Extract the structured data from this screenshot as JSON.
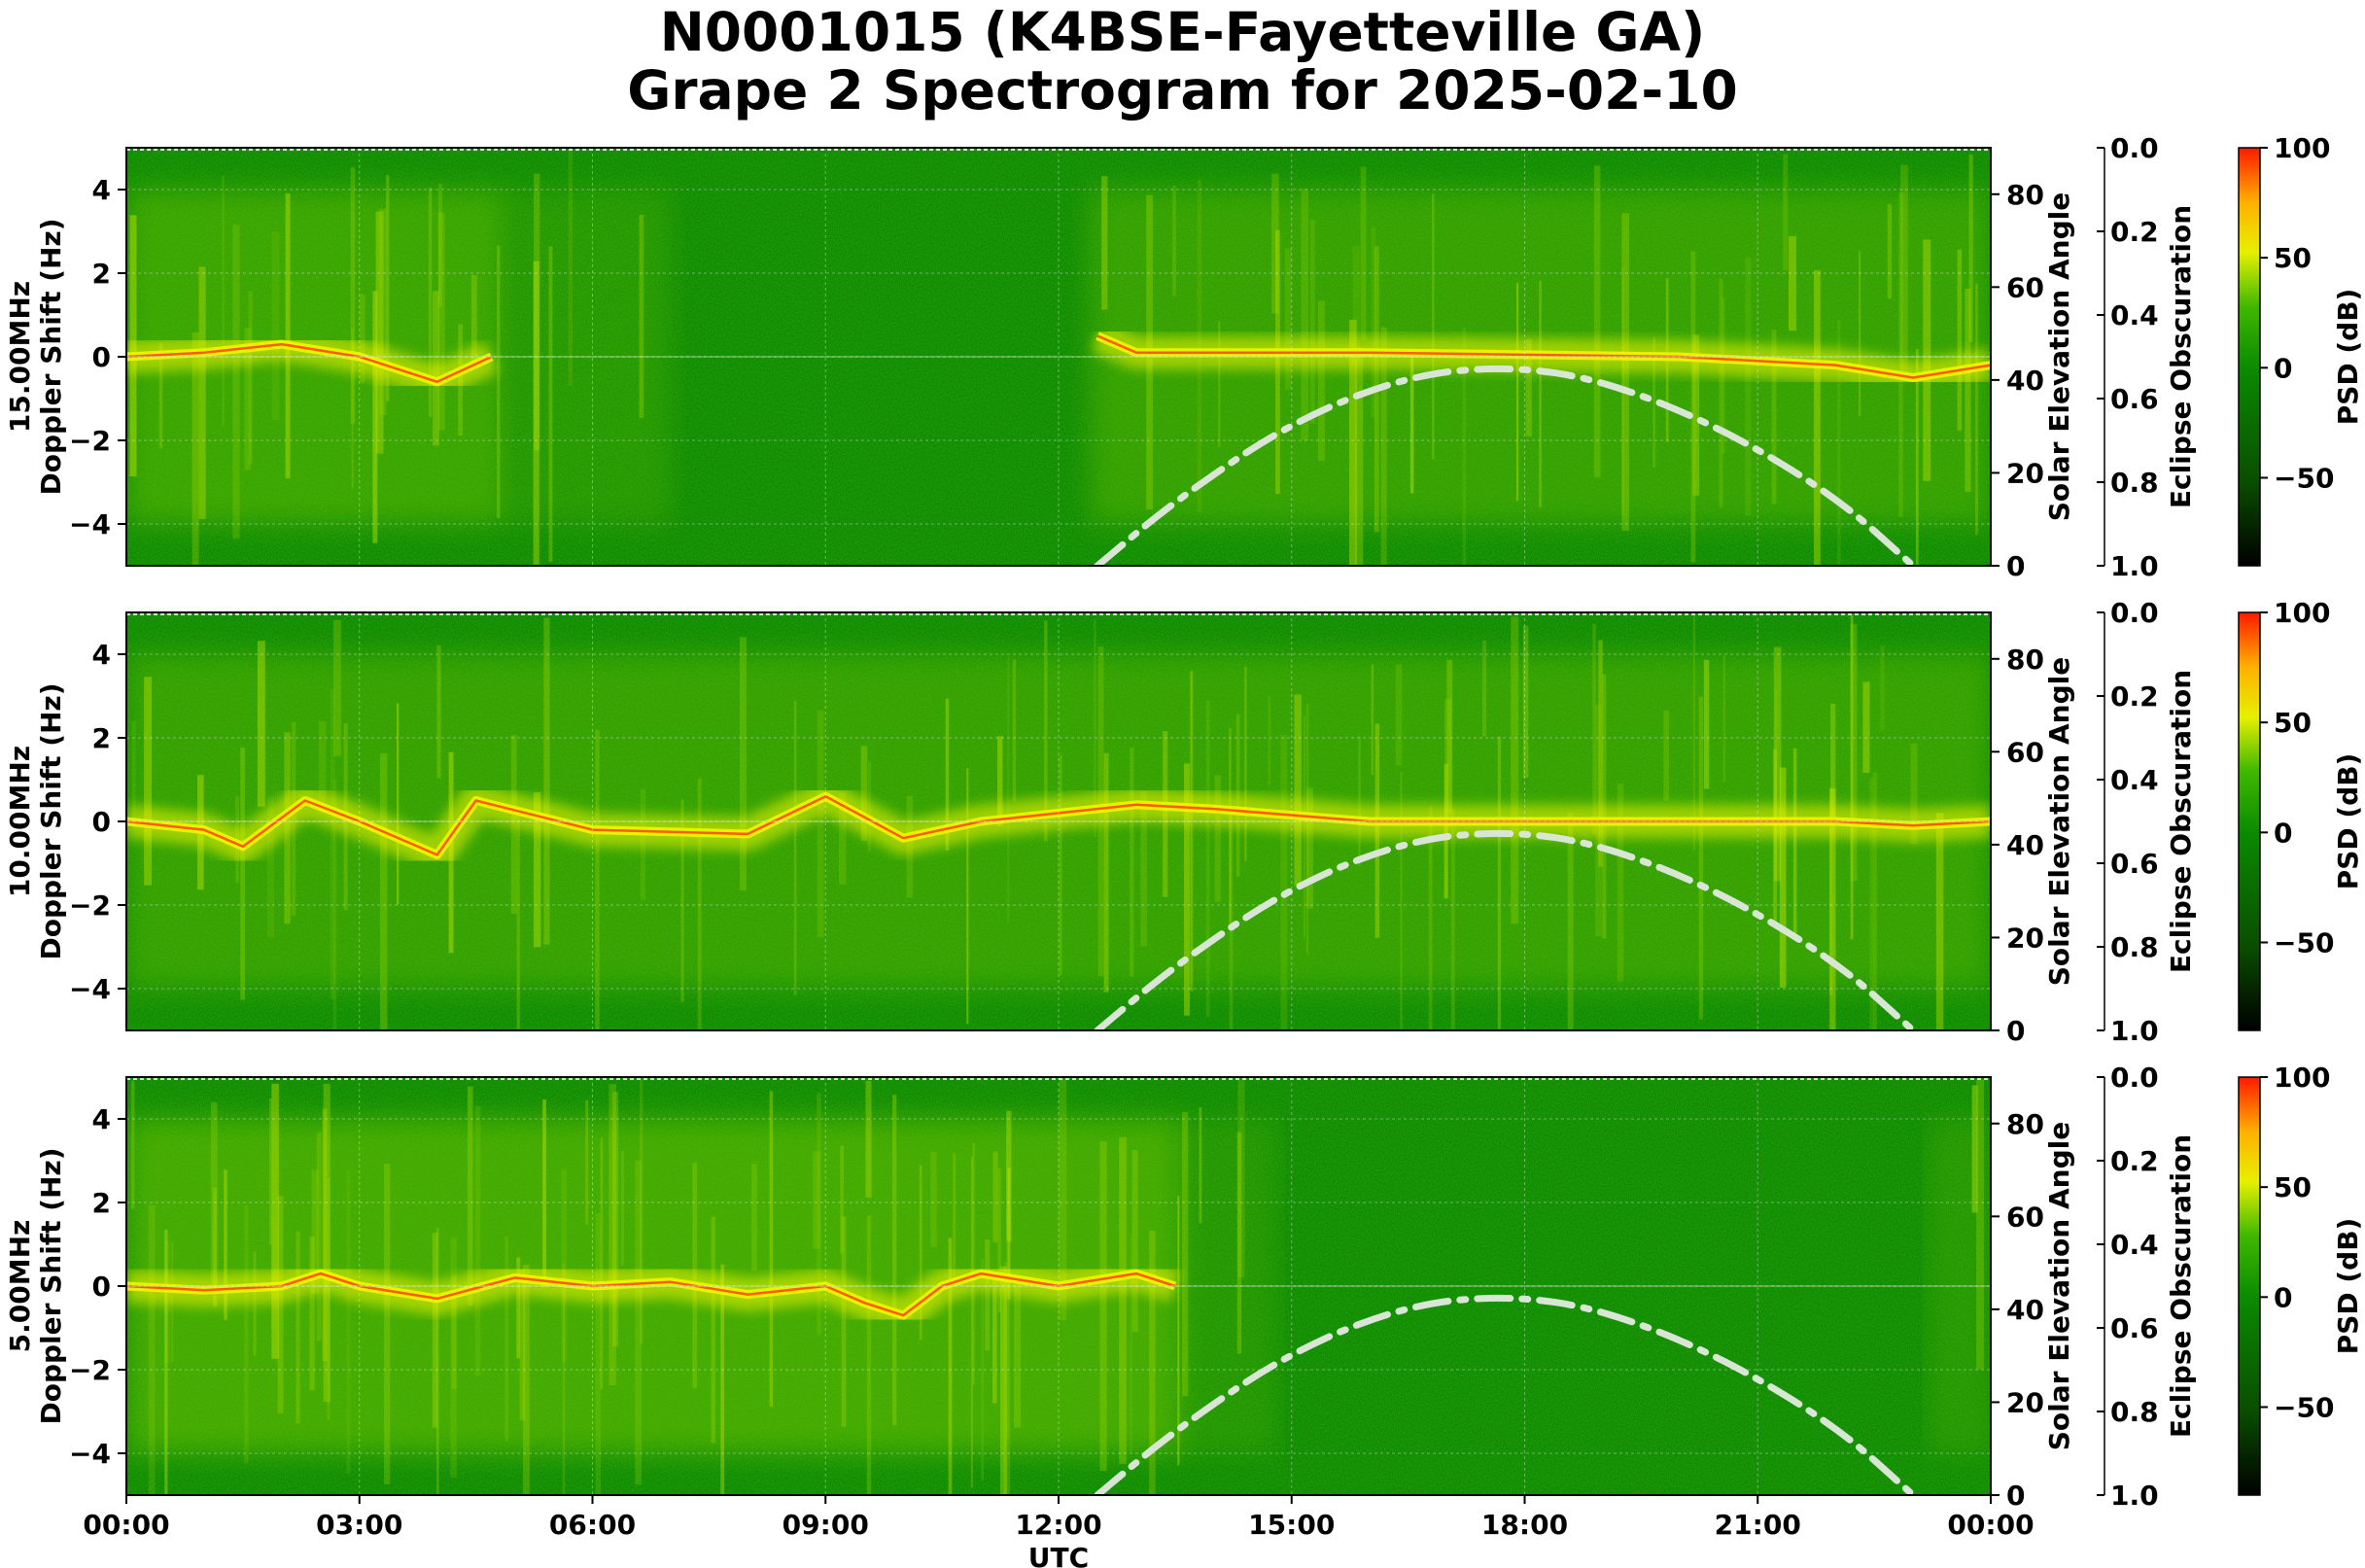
{
  "title_line1": "N0001015 (K4BSE-Fayetteville GA)",
  "title_line2": "Grape 2 Spectrogram for 2025-02-10",
  "colors": {
    "background_green": "#0a8a00",
    "signal_yellow": "#f2f500",
    "signal_red": "#ff2a00",
    "solar_curve": "#d9e6d6"
  },
  "chart_data": [
    {
      "type": "heatmap",
      "frequency_label": "15.00MHz",
      "ylabel": "Doppler Shift (Hz)",
      "y_ticks": [
        "4",
        "2",
        "0",
        "−2",
        "−4"
      ],
      "ylim": [
        -5,
        5
      ],
      "right_axis": {
        "label": "Solar Elevation Angle",
        "ticks": [
          "80",
          "60",
          "40",
          "20",
          "0"
        ],
        "range": [
          0,
          90
        ]
      },
      "eclipse_axis": {
        "label": "Eclipse Obscuration",
        "ticks": [
          "0.0",
          "0.2",
          "0.4",
          "0.6",
          "0.8",
          "1.0"
        ],
        "range": [
          0.0,
          1.0
        ]
      },
      "colorbar": {
        "label": "PSD (dB)",
        "ticks": [
          "100",
          "50",
          "0",
          "−50"
        ],
        "range": [
          -90,
          100
        ]
      },
      "doppler_trace": {
        "hours": [
          0,
          1,
          2,
          3,
          4,
          4.7
        ],
        "hz": [
          0,
          0.1,
          0.3,
          0,
          -0.6,
          0
        ]
      },
      "doppler_trace2": {
        "hours": [
          12.5,
          13,
          14,
          16,
          18,
          20,
          22,
          23,
          24
        ],
        "hz": [
          0.5,
          0.1,
          0.1,
          0.1,
          0.05,
          0,
          -0.2,
          -0.5,
          -0.2
        ]
      },
      "solar_elevation": {
        "hours": [
          12.5,
          13.5,
          15,
          16.5,
          17.8,
          19,
          20.5,
          22,
          23
        ],
        "deg": [
          0,
          14,
          31,
          41,
          43,
          40,
          30,
          15,
          0
        ]
      }
    },
    {
      "type": "heatmap",
      "frequency_label": "10.00MHz",
      "ylabel": "Doppler Shift (Hz)",
      "y_ticks": [
        "4",
        "2",
        "0",
        "−2",
        "−4"
      ],
      "ylim": [
        -5,
        5
      ],
      "right_axis": {
        "label": "Solar Elevation Angle",
        "ticks": [
          "80",
          "60",
          "40",
          "20",
          "0"
        ],
        "range": [
          0,
          90
        ]
      },
      "eclipse_axis": {
        "label": "Eclipse Obscuration",
        "ticks": [
          "0.0",
          "0.2",
          "0.4",
          "0.6",
          "0.8",
          "1.0"
        ],
        "range": [
          0.0,
          1.0
        ]
      },
      "colorbar": {
        "label": "PSD (dB)",
        "ticks": [
          "100",
          "50",
          "0",
          "−50"
        ],
        "range": [
          -90,
          100
        ]
      },
      "doppler_trace": {
        "hours": [
          0,
          1,
          1.5,
          2.3,
          3,
          4,
          4.5,
          6,
          8,
          9,
          10,
          11,
          12,
          13,
          14,
          16,
          18,
          20,
          22,
          23,
          24
        ],
        "hz": [
          0,
          -0.2,
          -0.6,
          0.5,
          0,
          -0.8,
          0.5,
          -0.2,
          -0.3,
          0.6,
          -0.4,
          0,
          0.2,
          0.4,
          0.3,
          0,
          0,
          0,
          0,
          -0.1,
          0
        ]
      },
      "solar_elevation": {
        "hours": [
          12.5,
          13.5,
          15,
          16.5,
          17.8,
          19,
          20.5,
          22,
          23
        ],
        "deg": [
          0,
          14,
          31,
          41,
          43,
          40,
          30,
          15,
          0
        ]
      }
    },
    {
      "type": "heatmap",
      "frequency_label": "5.00MHz",
      "ylabel": "Doppler Shift (Hz)",
      "y_ticks": [
        "4",
        "2",
        "0",
        "−2",
        "−4"
      ],
      "ylim": [
        -5,
        5
      ],
      "right_axis": {
        "label": "Solar Elevation Angle",
        "ticks": [
          "80",
          "60",
          "40",
          "20",
          "0"
        ],
        "range": [
          0,
          90
        ]
      },
      "eclipse_axis": {
        "label": "Eclipse Obscuration",
        "ticks": [
          "0.0",
          "0.2",
          "0.4",
          "0.6",
          "0.8",
          "1.0"
        ],
        "range": [
          0.0,
          1.0
        ]
      },
      "colorbar": {
        "label": "PSD (dB)",
        "ticks": [
          "100",
          "50",
          "0",
          "−50"
        ],
        "range": [
          -90,
          100
        ]
      },
      "doppler_trace": {
        "hours": [
          0,
          1,
          2,
          2.5,
          3,
          4,
          5,
          6,
          7,
          8,
          9,
          9.5,
          10,
          10.5,
          11,
          12,
          13,
          13.5
        ],
        "hz": [
          0,
          -0.1,
          0,
          0.3,
          0,
          -0.3,
          0.2,
          0,
          0.1,
          -0.2,
          0,
          -0.4,
          -0.7,
          0,
          0.3,
          0,
          0.3,
          0
        ]
      },
      "solar_elevation": {
        "hours": [
          12.5,
          13.5,
          15,
          16.5,
          17.8,
          19,
          20.5,
          22,
          23
        ],
        "deg": [
          0,
          14,
          31,
          41,
          43,
          40,
          30,
          15,
          0
        ]
      }
    }
  ],
  "x_axis": {
    "label": "UTC",
    "ticks": [
      "00:00",
      "03:00",
      "06:00",
      "09:00",
      "12:00",
      "15:00",
      "18:00",
      "21:00",
      "00:00"
    ],
    "range_hours": [
      0,
      24
    ]
  }
}
